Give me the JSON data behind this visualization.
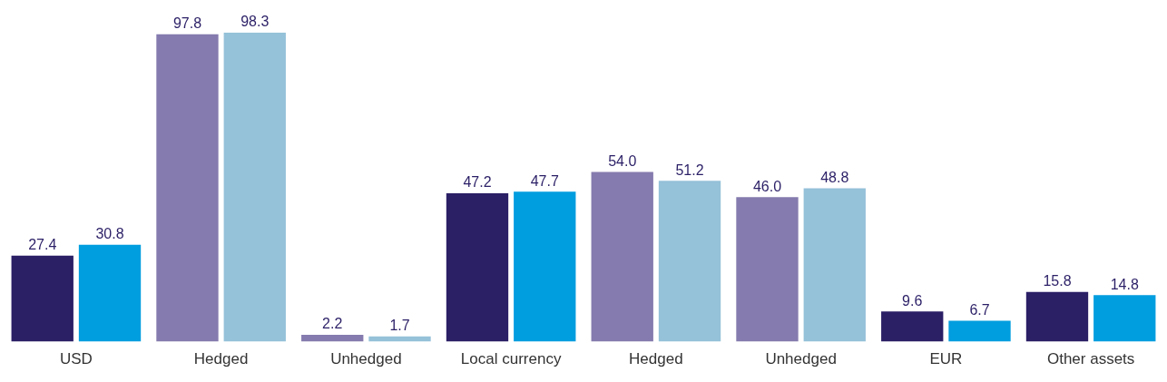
{
  "chart_data": {
    "type": "bar",
    "categories": [
      "USD",
      "Hedged",
      "Unhedged",
      "Local currency",
      "Hedged",
      "Unhedged",
      "EUR",
      "Other assets"
    ],
    "series": [
      {
        "colors": [
          "#2b1f66",
          "#857bae",
          "#857bae",
          "#2b1f66",
          "#857bae",
          "#857bae",
          "#2b1f66",
          "#2b1f66"
        ],
        "values": [
          27.4,
          97.8,
          2.2,
          47.2,
          54,
          46,
          9.6,
          15.8
        ],
        "value_labels": [
          "27.4",
          "97.8",
          "2.2",
          "47.2",
          "54.0",
          "46.0",
          "9.6",
          "15.8"
        ]
      },
      {
        "colors": [
          "#009ddf",
          "#95c1d9",
          "#95c1d9",
          "#009ddf",
          "#95c1d9",
          "#95c1d9",
          "#009ddf",
          "#009ddf"
        ],
        "values": [
          30.8,
          98.3,
          1.7,
          47.7,
          51.2,
          48.8,
          6.7,
          14.8
        ],
        "value_labels": [
          "30.8",
          "98.3",
          "1.7",
          "47.7",
          "51.2",
          "48.8",
          "6.7",
          "14.8"
        ]
      }
    ],
    "grid": false,
    "legend": false
  }
}
